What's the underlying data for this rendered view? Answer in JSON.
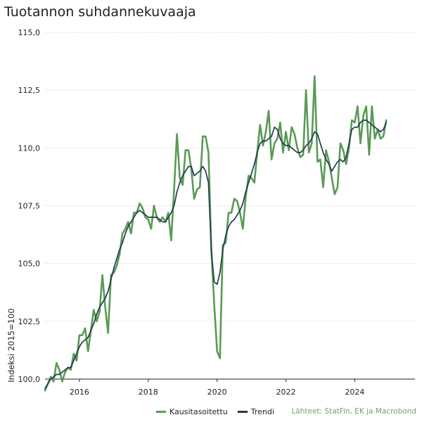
{
  "title": "Tuotannon suhdannekuvaaja",
  "source": "Lähteet: StatFin, EK ja Macrobond",
  "colors": {
    "series1": "#5a9a55",
    "series2": "#243a4f",
    "source": "#6aa864",
    "grid": "#dcdcdc"
  },
  "chart_data": {
    "type": "line",
    "ylabel": "Indeksi 2015=100",
    "ylim": [
      100.0,
      115.0
    ],
    "y_ticks": [
      "100,0",
      "102,5",
      "105,0",
      "107,5",
      "110,0",
      "112,5",
      "115,0"
    ],
    "xlim": [
      2015.0,
      2025.75
    ],
    "x_ticks": [
      "2016",
      "2018",
      "2020",
      "2022",
      "2024"
    ],
    "grid": true,
    "legend_position": "bottom",
    "series": [
      {
        "name": "Kausitasoitettu",
        "x_start": "2015-01",
        "frequency": "monthly",
        "values": [
          99.5,
          99.8,
          100.1,
          99.9,
          100.7,
          100.4,
          99.9,
          100.3,
          100.5,
          100.4,
          101.1,
          100.8,
          101.9,
          101.9,
          102.2,
          101.2,
          102.1,
          103.0,
          102.5,
          102.9,
          104.5,
          103.1,
          102.0,
          104.5,
          104.6,
          104.9,
          105.4,
          106.3,
          106.5,
          106.8,
          106.3,
          107.2,
          107.2,
          107.6,
          107.4,
          107.0,
          106.9,
          106.5,
          107.5,
          107.0,
          106.8,
          107.0,
          106.8,
          107.2,
          106.0,
          108.2,
          110.6,
          108.7,
          108.4,
          109.9,
          109.9,
          109.1,
          107.8,
          108.2,
          108.3,
          110.5,
          110.5,
          109.8,
          105.6,
          103.2,
          101.2,
          100.9,
          105.8,
          105.9,
          107.2,
          107.2,
          107.8,
          107.7,
          107.2,
          106.5,
          107.9,
          108.8,
          108.7,
          108.5,
          109.8,
          111.0,
          110.1,
          110.7,
          111.6,
          109.5,
          110.2,
          110.4,
          111.1,
          109.8,
          110.7,
          109.9,
          110.9,
          110.6,
          110.0,
          109.6,
          109.7,
          112.5,
          109.8,
          110.2,
          113.1,
          109.4,
          109.5,
          108.3,
          109.9,
          109.4,
          108.7,
          108.0,
          108.3,
          110.2,
          109.9,
          109.3,
          110.0,
          111.2,
          111.1,
          111.8,
          110.2,
          111.4,
          111.8,
          109.7,
          111.8,
          110.4,
          110.8,
          110.4,
          110.5,
          111.2
        ]
      },
      {
        "name": "Trendi",
        "x_start": "2015-01",
        "frequency": "monthly",
        "values": [
          99.6,
          99.8,
          100.0,
          100.1,
          100.2,
          100.2,
          100.3,
          100.4,
          100.5,
          100.5,
          100.8,
          101.1,
          101.4,
          101.6,
          101.7,
          101.8,
          102.1,
          102.4,
          102.8,
          103.1,
          103.3,
          103.5,
          103.8,
          104.3,
          104.8,
          105.2,
          105.6,
          105.9,
          106.3,
          106.6,
          106.8,
          107.0,
          107.2,
          107.3,
          107.2,
          107.1,
          107.0,
          107.0,
          107.0,
          107.0,
          106.9,
          106.8,
          106.8,
          107.0,
          107.2,
          107.5,
          108.1,
          108.5,
          108.8,
          109.0,
          109.2,
          109.2,
          108.8,
          108.9,
          109.0,
          109.2,
          109.0,
          108.5,
          105.5,
          104.2,
          104.1,
          104.6,
          105.6,
          106.2,
          106.6,
          106.8,
          106.9,
          107.1,
          107.3,
          107.6,
          108.1,
          108.5,
          108.9,
          109.3,
          109.8,
          110.2,
          110.3,
          110.3,
          110.4,
          110.5,
          110.9,
          110.8,
          110.4,
          110.2,
          110.1,
          110.1,
          110.0,
          109.9,
          109.8,
          109.8,
          109.9,
          110.1,
          110.2,
          110.4,
          110.7,
          110.6,
          110.2,
          109.8,
          109.5,
          109.3,
          109.0,
          109.2,
          109.4,
          109.5,
          109.4,
          109.6,
          110.2,
          110.8,
          110.9,
          110.9,
          111.1,
          111.2,
          111.2,
          111.1,
          111.0,
          110.9,
          110.8,
          110.7,
          110.8,
          111.1
        ]
      }
    ]
  }
}
